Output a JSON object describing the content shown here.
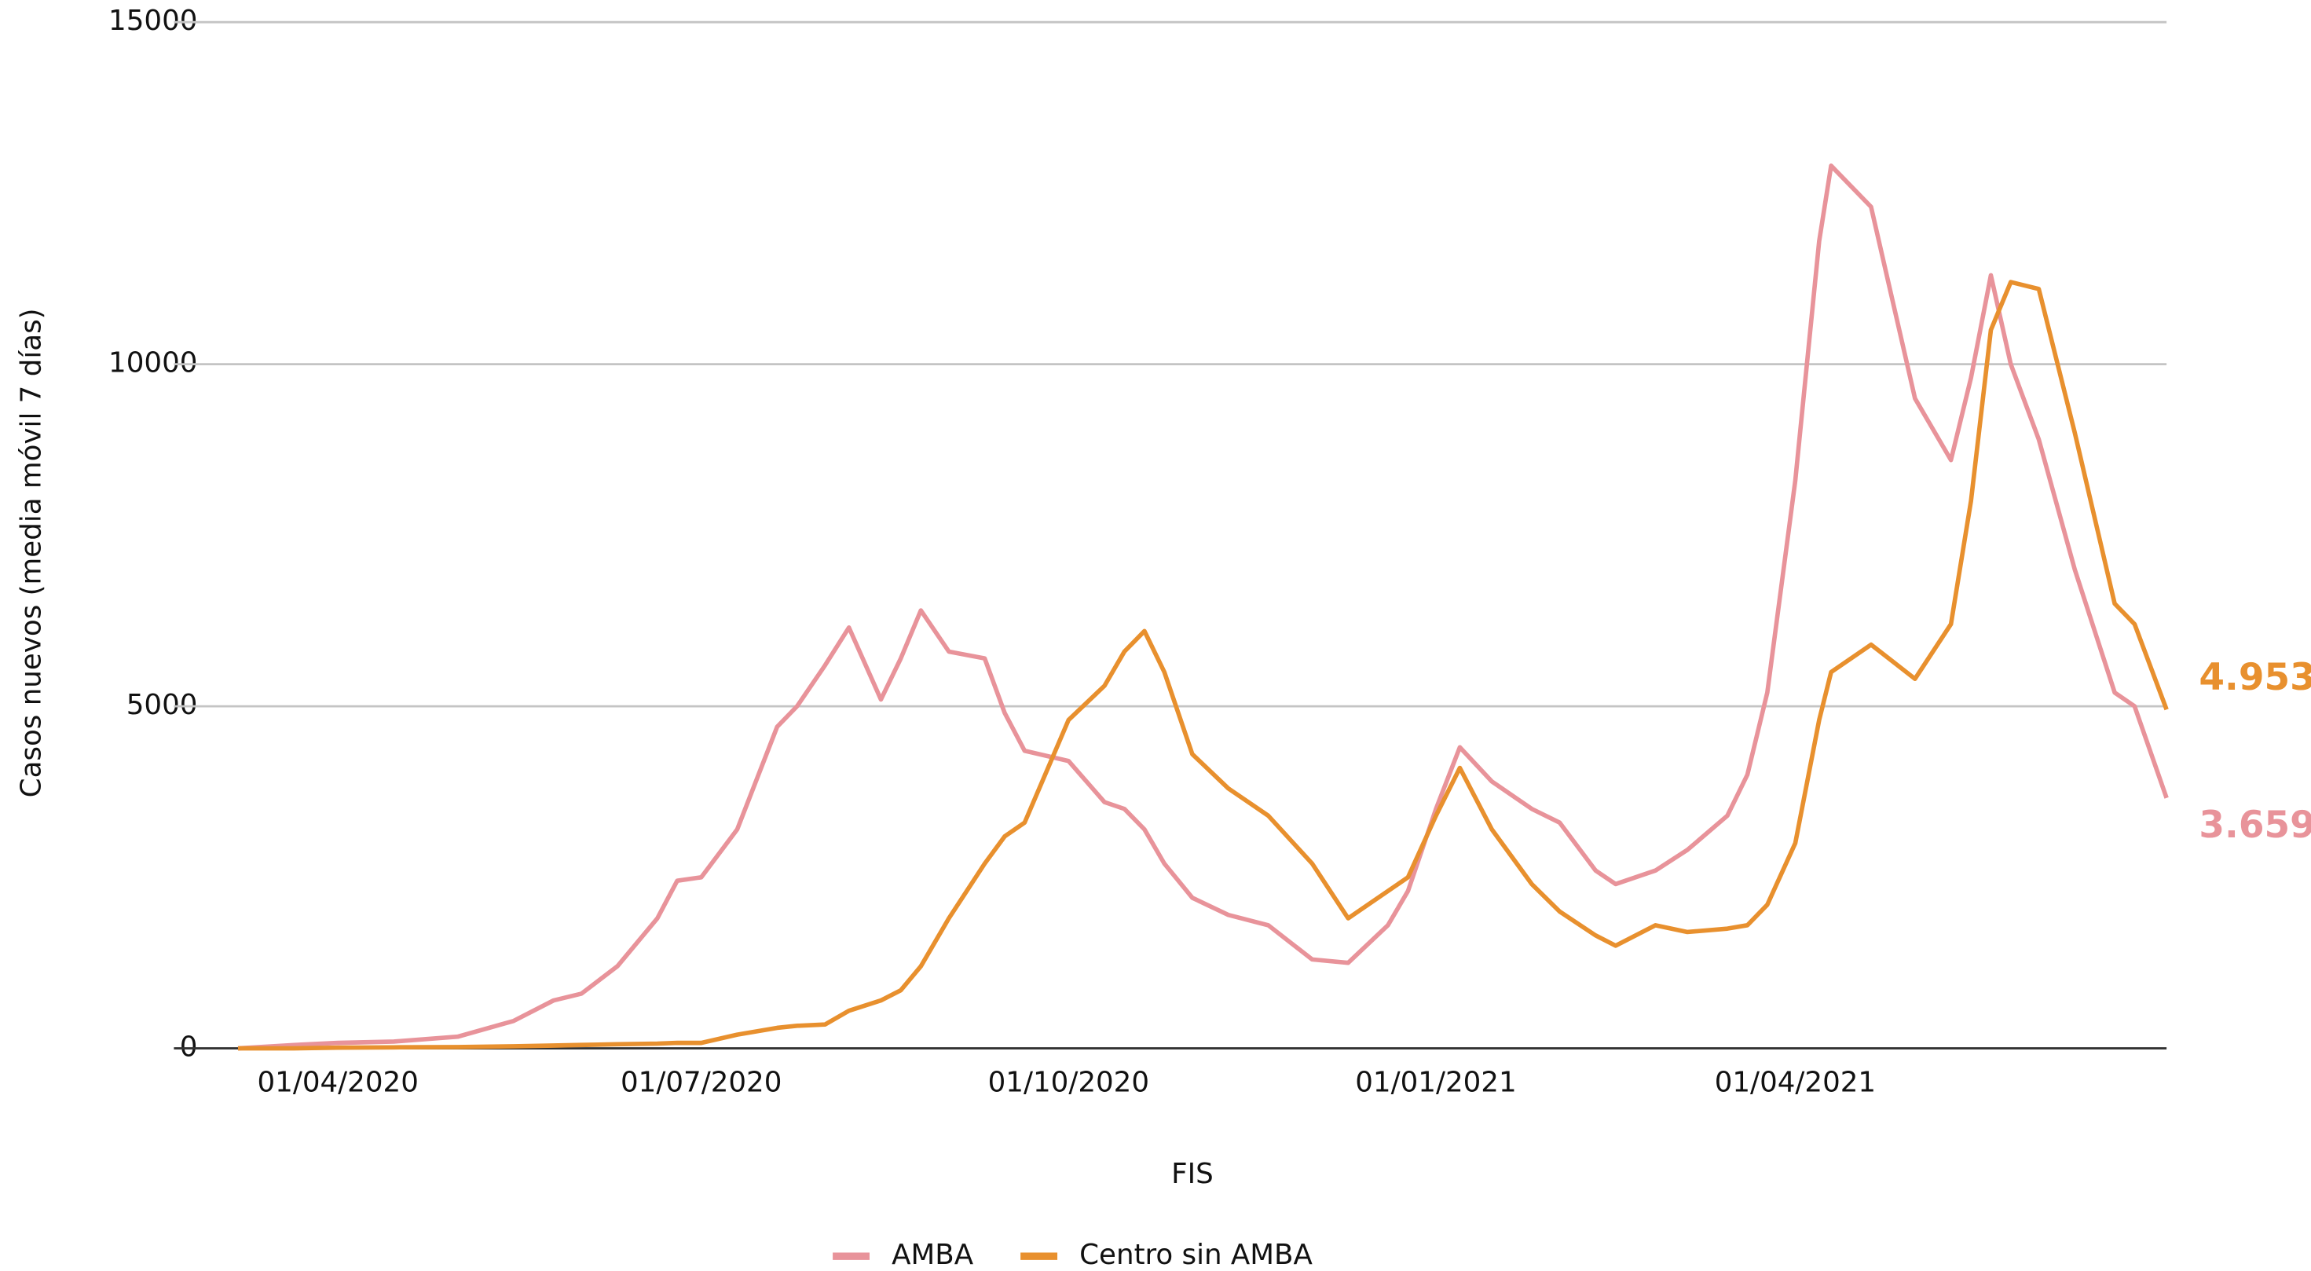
{
  "chart_data": {
    "type": "line",
    "x_label": "FIS",
    "y_label": "Casos nuevos (media móvil 7 días)",
    "x": [
      "07/03/2020",
      "21/03/2020",
      "01/04/2020",
      "15/04/2020",
      "01/05/2020",
      "15/05/2020",
      "25/05/2020",
      "01/06/2020",
      "10/06/2020",
      "20/06/2020",
      "25/06/2020",
      "01/07/2020",
      "10/07/2020",
      "20/07/2020",
      "25/07/2020",
      "01/08/2020",
      "07/08/2020",
      "15/08/2020",
      "20/08/2020",
      "25/08/2020",
      "01/09/2020",
      "10/09/2020",
      "15/09/2020",
      "20/09/2020",
      "01/10/2020",
      "10/10/2020",
      "15/10/2020",
      "20/10/2020",
      "25/10/2020",
      "01/11/2020",
      "10/11/2020",
      "20/11/2020",
      "01/12/2020",
      "10/12/2020",
      "20/12/2020",
      "25/12/2020",
      "01/01/2021",
      "07/01/2021",
      "15/01/2021",
      "25/01/2021",
      "01/02/2021",
      "10/02/2021",
      "15/02/2021",
      "25/02/2021",
      "05/03/2021",
      "15/03/2021",
      "20/03/2021",
      "25/03/2021",
      "01/04/2021",
      "07/04/2021",
      "10/04/2021",
      "20/04/2021",
      "01/05/2021",
      "10/05/2021",
      "15/05/2021",
      "20/05/2021",
      "25/05/2021",
      "01/06/2021",
      "10/06/2021",
      "20/06/2021",
      "25/06/2021",
      "03/07/2021"
    ],
    "series": [
      {
        "name": "AMBA",
        "color": "#e8939a",
        "values": [
          0,
          50,
          80,
          100,
          170,
          400,
          700,
          800,
          1200,
          1900,
          2450,
          2500,
          3200,
          4700,
          5000,
          5600,
          6150,
          5100,
          5700,
          6400,
          5800,
          5700,
          4900,
          4350,
          4200,
          3600,
          3500,
          3200,
          2700,
          2200,
          1950,
          1800,
          1300,
          1250,
          1800,
          2300,
          3500,
          4400,
          3900,
          3500,
          3300,
          2600,
          2400,
          2600,
          2900,
          3400,
          4000,
          5200,
          8300,
          11800,
          12900,
          12300,
          9500,
          8600,
          9800,
          11300,
          10000,
          8900,
          7000,
          5200,
          5000,
          3659
        ],
        "value_labels": [
          null,
          null,
          null,
          null,
          null,
          null,
          null,
          null,
          null,
          null,
          null,
          null,
          null,
          null,
          null,
          null,
          null,
          null,
          null,
          null,
          null,
          null,
          null,
          null,
          null,
          null,
          null,
          null,
          null,
          null,
          null,
          null,
          null,
          null,
          null,
          null,
          null,
          null,
          null,
          null,
          null,
          null,
          null,
          null,
          null,
          null,
          null,
          null,
          null,
          null,
          null,
          null,
          null,
          null,
          null,
          null,
          null,
          null,
          null,
          null,
          null,
          "3.659"
        ]
      },
      {
        "name": "Centro sin AMBA",
        "color": "#e8902e",
        "values": [
          0,
          0,
          10,
          15,
          20,
          30,
          40,
          50,
          60,
          70,
          80,
          80,
          200,
          300,
          330,
          350,
          550,
          700,
          850,
          1200,
          1900,
          2700,
          3100,
          3300,
          4800,
          5300,
          5800,
          6100,
          5500,
          4300,
          3800,
          3400,
          2700,
          1900,
          2300,
          2500,
          3400,
          4100,
          3200,
          2400,
          2000,
          1650,
          1500,
          1800,
          1700,
          1750,
          1800,
          2100,
          3000,
          4800,
          5500,
          5900,
          5400,
          6200,
          8000,
          10500,
          11200,
          11100,
          9000,
          6500,
          6200,
          4953
        ],
        "value_labels": [
          null,
          null,
          null,
          null,
          null,
          null,
          null,
          null,
          null,
          null,
          null,
          null,
          null,
          null,
          null,
          null,
          null,
          null,
          null,
          null,
          null,
          null,
          null,
          null,
          null,
          null,
          null,
          null,
          null,
          null,
          null,
          null,
          null,
          null,
          null,
          null,
          null,
          null,
          null,
          null,
          null,
          null,
          null,
          null,
          null,
          null,
          null,
          null,
          null,
          null,
          null,
          null,
          null,
          null,
          null,
          null,
          null,
          null,
          null,
          null,
          null,
          "4.953"
        ]
      }
    ],
    "xlim": [
      "02/03/2020",
      "03/07/2021"
    ],
    "xticks": [
      "01/04/2020",
      "01/07/2020",
      "01/10/2020",
      "01/01/2021",
      "01/04/2021"
    ],
    "ylim": [
      0,
      15000
    ],
    "yticks": [
      0,
      5000,
      10000,
      15000
    ],
    "grid": true,
    "legend": "bottom"
  }
}
